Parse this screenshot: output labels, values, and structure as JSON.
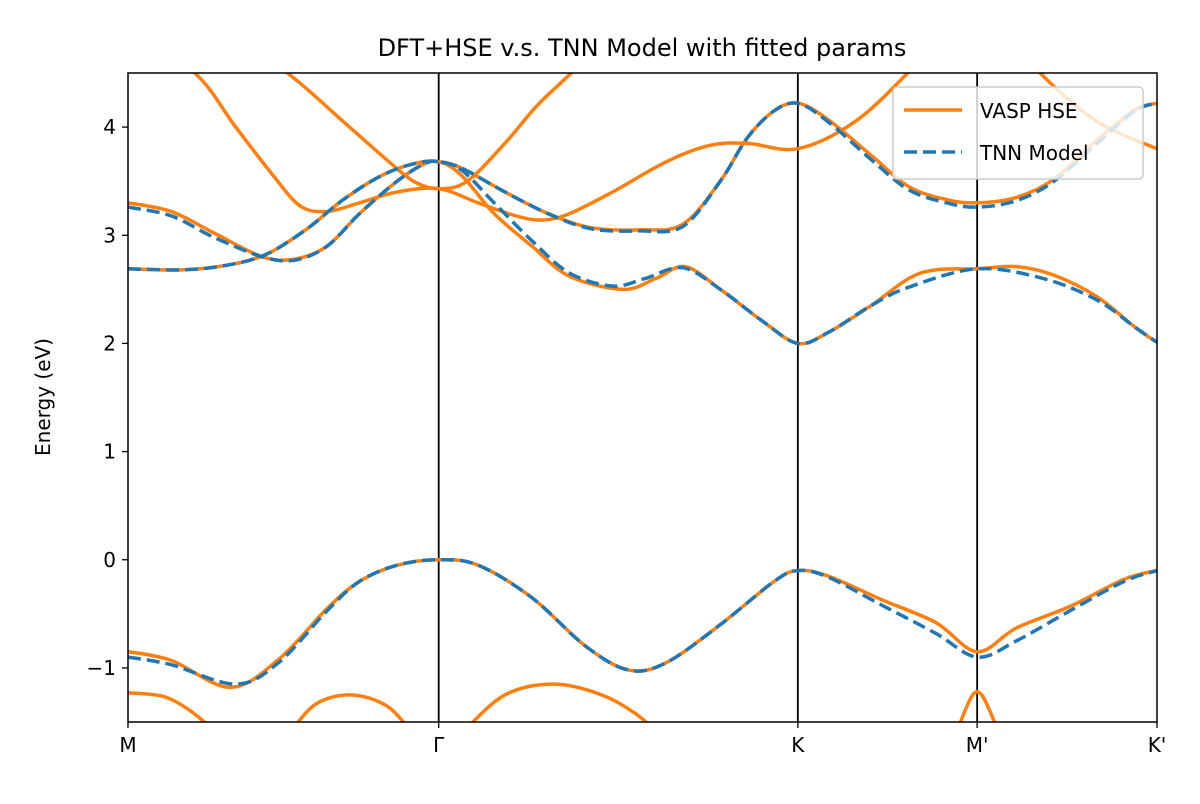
{
  "chart_data": {
    "type": "line",
    "title": "DFT+HSE v.s. TNN Model with fitted params",
    "xlabel": "",
    "ylabel": "Energy (eV)",
    "xlim": [
      0,
      1.911
    ],
    "ylim": [
      -1.5,
      4.5
    ],
    "grid": false,
    "legend_placement": "top-right",
    "x_ticks": [
      {
        "label": "M",
        "value": 0
      },
      {
        "label": "Γ",
        "value": 0.577
      },
      {
        "label": "K",
        "value": 1.244
      },
      {
        "label": "M'",
        "value": 1.577
      },
      {
        "label": "K'",
        "value": 1.911
      }
    ],
    "y_ticks": [
      {
        "label": "−1",
        "value": -1
      },
      {
        "label": "0",
        "value": 0
      },
      {
        "label": "1",
        "value": 1
      },
      {
        "label": "2",
        "value": 2
      },
      {
        "label": "3",
        "value": 3
      },
      {
        "label": "4",
        "value": 4
      }
    ],
    "series": [
      {
        "name": "VASP HSE",
        "color": "#ff7f0e",
        "style": "solid",
        "bands": [
          [
            [
              0,
              -0.85
            ],
            [
              0.08,
              -0.93
            ],
            [
              0.19,
              -1.18
            ],
            [
              0.28,
              -0.92
            ],
            [
              0.37,
              -0.45
            ],
            [
              0.43,
              -0.2
            ],
            [
              0.5,
              -0.05
            ],
            [
              0.577,
              0
            ],
            [
              0.65,
              -0.05
            ],
            [
              0.75,
              -0.35
            ],
            [
              0.85,
              -0.8
            ],
            [
              0.93,
              -1.02
            ],
            [
              1.0,
              -0.95
            ],
            [
              1.1,
              -0.6
            ],
            [
              1.2,
              -0.2
            ],
            [
              1.244,
              -0.1
            ],
            [
              1.3,
              -0.15
            ],
            [
              1.4,
              -0.37
            ],
            [
              1.5,
              -0.58
            ],
            [
              1.577,
              -0.85
            ],
            [
              1.65,
              -0.63
            ],
            [
              1.75,
              -0.43
            ],
            [
              1.85,
              -0.18
            ],
            [
              1.911,
              -0.1
            ]
          ],
          [
            [
              0,
              -1.23
            ],
            [
              0.07,
              -1.27
            ],
            [
              0.13,
              -1.45
            ],
            [
              0.18,
              -1.7
            ],
            [
              0.22,
              -1.9
            ]
          ],
          [
            [
              0.25,
              -1.9
            ],
            [
              0.3,
              -1.6
            ],
            [
              0.35,
              -1.33
            ],
            [
              0.415,
              -1.25
            ],
            [
              0.48,
              -1.35
            ],
            [
              0.53,
              -1.6
            ],
            [
              0.577,
              -1.8
            ],
            [
              0.62,
              -1.6
            ],
            [
              0.7,
              -1.25
            ],
            [
              0.79,
              -1.15
            ],
            [
              0.88,
              -1.25
            ],
            [
              0.95,
              -1.45
            ],
            [
              1.0,
              -1.7
            ]
          ],
          [
            [
              1.52,
              -1.9
            ],
            [
              1.55,
              -1.45
            ],
            [
              1.577,
              -1.22
            ],
            [
              1.605,
              -1.45
            ],
            [
              1.635,
              -1.9
            ]
          ],
          [
            [
              0,
              2.69
            ],
            [
              0.1,
              2.68
            ],
            [
              0.18,
              2.72
            ],
            [
              0.255,
              2.82
            ],
            [
              0.33,
              3.05
            ],
            [
              0.4,
              3.33
            ],
            [
              0.47,
              3.55
            ],
            [
              0.53,
              3.66
            ],
            [
              0.577,
              3.68
            ],
            [
              0.62,
              3.55
            ],
            [
              0.68,
              3.2
            ],
            [
              0.75,
              2.9
            ],
            [
              0.82,
              2.62
            ],
            [
              0.92,
              2.5
            ],
            [
              0.98,
              2.6
            ],
            [
              1.035,
              2.71
            ],
            [
              1.1,
              2.5
            ],
            [
              1.18,
              2.2
            ],
            [
              1.244,
              2.0
            ],
            [
              1.3,
              2.1
            ],
            [
              1.38,
              2.35
            ],
            [
              1.45,
              2.6
            ],
            [
              1.5,
              2.68
            ],
            [
              1.577,
              2.69
            ],
            [
              1.65,
              2.71
            ],
            [
              1.72,
              2.63
            ],
            [
              1.8,
              2.43
            ],
            [
              1.87,
              2.15
            ],
            [
              1.911,
              2.01
            ]
          ],
          [
            [
              0,
              3.3
            ],
            [
              0.08,
              3.22
            ],
            [
              0.16,
              3.02
            ],
            [
              0.25,
              2.8
            ],
            [
              0.31,
              2.78
            ],
            [
              0.37,
              2.9
            ],
            [
              0.43,
              3.2
            ],
            [
              0.5,
              3.5
            ],
            [
              0.55,
              3.66
            ],
            [
              0.577,
              3.68
            ],
            [
              0.62,
              3.62
            ],
            [
              0.7,
              3.4
            ],
            [
              0.78,
              3.2
            ],
            [
              0.86,
              3.07
            ],
            [
              0.95,
              3.05
            ],
            [
              1.03,
              3.1
            ],
            [
              1.1,
              3.5
            ],
            [
              1.15,
              3.9
            ],
            [
              1.2,
              4.15
            ],
            [
              1.244,
              4.22
            ],
            [
              1.3,
              4.07
            ],
            [
              1.38,
              3.74
            ],
            [
              1.45,
              3.45
            ],
            [
              1.52,
              3.33
            ],
            [
              1.577,
              3.3
            ],
            [
              1.65,
              3.35
            ],
            [
              1.72,
              3.52
            ],
            [
              1.8,
              3.88
            ],
            [
              1.87,
              4.16
            ],
            [
              1.911,
              4.22
            ]
          ],
          [
            [
              0,
              4.9
            ],
            [
              0.124,
              4.5
            ],
            [
              0.2,
              4.0
            ],
            [
              0.27,
              3.55
            ],
            [
              0.32,
              3.27
            ],
            [
              0.37,
              3.22
            ],
            [
              0.43,
              3.3
            ],
            [
              0.5,
              3.4
            ],
            [
              0.577,
              3.43
            ],
            [
              0.65,
              3.3
            ],
            [
              0.72,
              3.18
            ],
            [
              0.77,
              3.14
            ],
            [
              0.82,
              3.2
            ],
            [
              0.9,
              3.4
            ],
            [
              1.0,
              3.68
            ],
            [
              1.08,
              3.83
            ],
            [
              1.15,
              3.85
            ],
            [
              1.244,
              3.8
            ],
            [
              1.35,
              4.05
            ],
            [
              1.448,
              4.5
            ],
            [
              1.51,
              4.85
            ],
            [
              1.577,
              5.0
            ],
            [
              1.64,
              4.85
            ],
            [
              1.694,
              4.5
            ],
            [
              1.8,
              4.05
            ],
            [
              1.911,
              3.8
            ]
          ],
          [
            [
              0.15,
              5.0
            ],
            [
              0.296,
              4.5
            ],
            [
              0.4,
              4.05
            ],
            [
              0.48,
              3.7
            ],
            [
              0.53,
              3.5
            ],
            [
              0.577,
              3.43
            ],
            [
              0.63,
              3.5
            ],
            [
              0.7,
              3.85
            ],
            [
              0.76,
              4.2
            ],
            [
              0.823,
              4.5
            ],
            [
              0.88,
              4.8
            ]
          ]
        ]
      },
      {
        "name": "TNN Model",
        "color": "#1f77b4",
        "style": "dashed",
        "bands": [
          [
            [
              0,
              -0.9
            ],
            [
              0.08,
              -0.97
            ],
            [
              0.2,
              -1.15
            ],
            [
              0.28,
              -0.95
            ],
            [
              0.37,
              -0.47
            ],
            [
              0.43,
              -0.2
            ],
            [
              0.5,
              -0.05
            ],
            [
              0.577,
              0
            ],
            [
              0.65,
              -0.05
            ],
            [
              0.75,
              -0.35
            ],
            [
              0.85,
              -0.8
            ],
            [
              0.93,
              -1.02
            ],
            [
              1.0,
              -0.95
            ],
            [
              1.1,
              -0.6
            ],
            [
              1.2,
              -0.2
            ],
            [
              1.244,
              -0.1
            ],
            [
              1.3,
              -0.16
            ],
            [
              1.4,
              -0.42
            ],
            [
              1.5,
              -0.68
            ],
            [
              1.577,
              -0.9
            ],
            [
              1.65,
              -0.75
            ],
            [
              1.75,
              -0.47
            ],
            [
              1.85,
              -0.2
            ],
            [
              1.911,
              -0.1
            ]
          ],
          [
            [
              0,
              2.69
            ],
            [
              0.1,
              2.68
            ],
            [
              0.18,
              2.72
            ],
            [
              0.255,
              2.82
            ],
            [
              0.33,
              3.05
            ],
            [
              0.4,
              3.33
            ],
            [
              0.47,
              3.55
            ],
            [
              0.53,
              3.66
            ],
            [
              0.577,
              3.68
            ],
            [
              0.62,
              3.6
            ],
            [
              0.68,
              3.3
            ],
            [
              0.75,
              2.95
            ],
            [
              0.82,
              2.65
            ],
            [
              0.9,
              2.53
            ],
            [
              0.96,
              2.6
            ],
            [
              1.03,
              2.7
            ],
            [
              1.1,
              2.5
            ],
            [
              1.18,
              2.2
            ],
            [
              1.244,
              2.0
            ],
            [
              1.3,
              2.1
            ],
            [
              1.38,
              2.35
            ],
            [
              1.45,
              2.52
            ],
            [
              1.577,
              2.69
            ],
            [
              1.7,
              2.6
            ],
            [
              1.8,
              2.4
            ],
            [
              1.87,
              2.15
            ],
            [
              1.911,
              2.01
            ]
          ],
          [
            [
              0,
              3.26
            ],
            [
              0.08,
              3.18
            ],
            [
              0.16,
              2.98
            ],
            [
              0.25,
              2.8
            ],
            [
              0.31,
              2.77
            ],
            [
              0.37,
              2.9
            ],
            [
              0.43,
              3.2
            ],
            [
              0.5,
              3.5
            ],
            [
              0.55,
              3.66
            ],
            [
              0.577,
              3.68
            ],
            [
              0.62,
              3.62
            ],
            [
              0.7,
              3.4
            ],
            [
              0.78,
              3.2
            ],
            [
              0.86,
              3.06
            ],
            [
              0.95,
              3.04
            ],
            [
              1.03,
              3.08
            ],
            [
              1.1,
              3.5
            ],
            [
              1.15,
              3.9
            ],
            [
              1.2,
              4.15
            ],
            [
              1.244,
              4.22
            ],
            [
              1.3,
              4.05
            ],
            [
              1.38,
              3.7
            ],
            [
              1.45,
              3.42
            ],
            [
              1.52,
              3.3
            ],
            [
              1.577,
              3.26
            ],
            [
              1.65,
              3.32
            ],
            [
              1.72,
              3.5
            ],
            [
              1.8,
              3.85
            ],
            [
              1.87,
              4.15
            ],
            [
              1.911,
              4.22
            ]
          ]
        ]
      }
    ]
  }
}
